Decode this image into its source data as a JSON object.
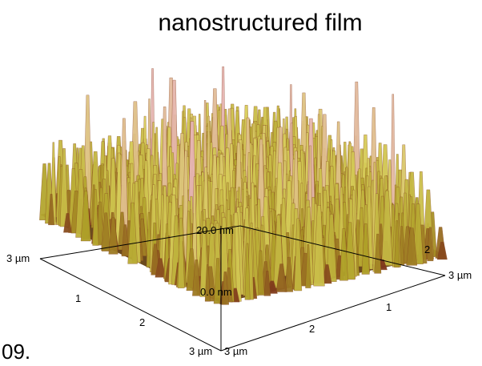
{
  "title": "nanostructured film",
  "z_axis": {
    "top": "20.0 nm",
    "bottom": "0.0 nm"
  },
  "left_axis": {
    "end": "3 µm",
    "ticks": [
      "1",
      "2"
    ],
    "corner": "3 µm"
  },
  "right_axis": {
    "corner": "3 µm",
    "ticks": [
      "2",
      "1"
    ],
    "end": "3 µm",
    "back_tick": "2"
  },
  "fragment": "09."
}
